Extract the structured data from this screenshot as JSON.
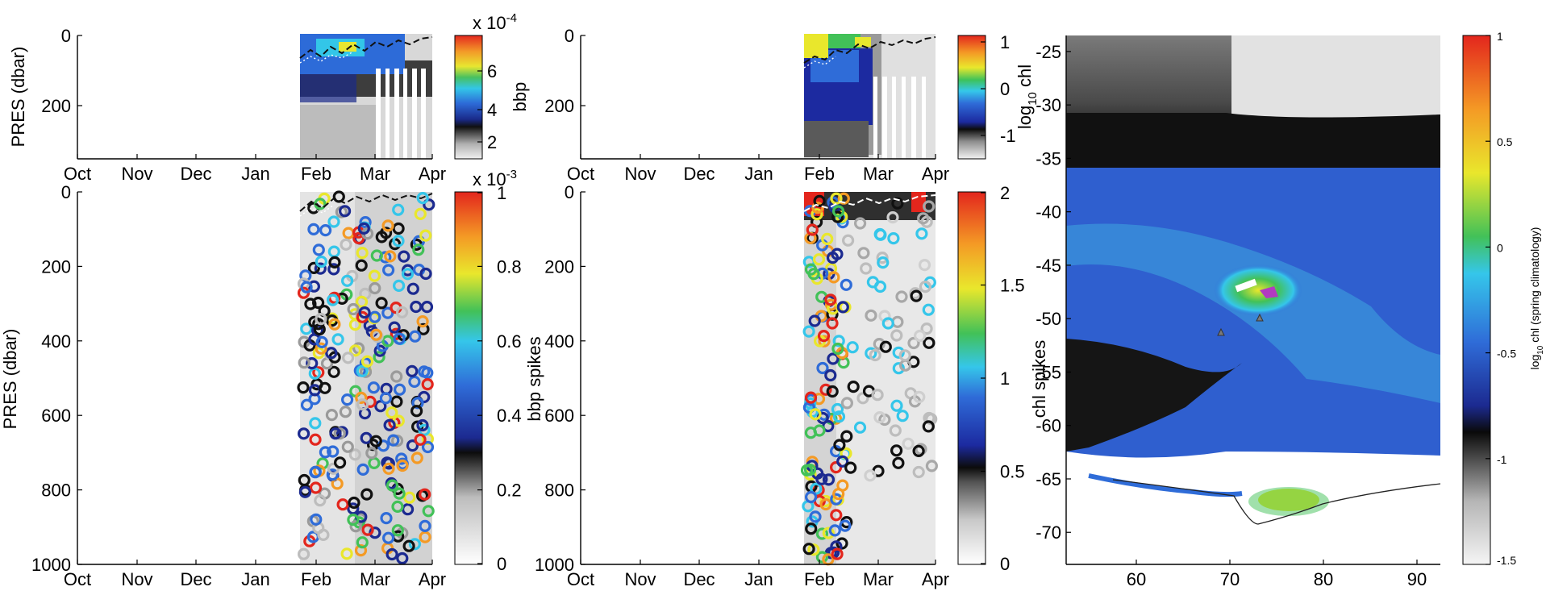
{
  "chart_data": [
    {
      "panel": "top-left",
      "type": "heatmap",
      "ylabel": "PRES (dbar)",
      "xlabel": "",
      "x_ticks": [
        "Oct",
        "Nov",
        "Dec",
        "Jan",
        "Feb",
        "Mar",
        "Apr"
      ],
      "y_ticks": [
        0,
        200
      ],
      "ylim": [
        350,
        0
      ],
      "colorbar": {
        "label": "bbp",
        "multiplier": "x 10",
        "exponent": "-4",
        "ticks": [
          2,
          4,
          6
        ],
        "range": [
          1.2,
          8.5
        ],
        "colormap": "gray-black-blue-cyan-green-yellow-red"
      },
      "data_extent": [
        "Feb",
        "Apr"
      ]
    },
    {
      "panel": "top-middle",
      "type": "heatmap",
      "ylabel": "",
      "x_ticks": [
        "Oct",
        "Nov",
        "Dec",
        "Jan",
        "Feb",
        "Mar",
        "Apr"
      ],
      "y_ticks": [
        0,
        200
      ],
      "ylim": [
        350,
        0
      ],
      "colorbar": {
        "label": "",
        "ticks": [
          -1,
          0,
          1
        ],
        "range": [
          -1.4,
          1.1
        ],
        "colormap": "gray-black-blue-cyan-green-yellow-red"
      },
      "data_extent": [
        "Feb",
        "Apr"
      ]
    },
    {
      "panel": "bottom-left",
      "type": "scatter",
      "ylabel": "PRES (dbar)",
      "x_ticks": [
        "Oct",
        "Nov",
        "Dec",
        "Jan",
        "Feb",
        "Mar",
        "Apr"
      ],
      "y_ticks": [
        0,
        200,
        400,
        600,
        800,
        1000
      ],
      "ylim": [
        1000,
        0
      ],
      "colorbar": {
        "label": "",
        "multiplier": "x 10",
        "exponent": "-3",
        "ticks": [
          0,
          0.2,
          0.4,
          0.6,
          0.8,
          1
        ],
        "range": [
          0,
          1
        ],
        "colormap": "white-gray-black-blue-cyan-green-yellow-red"
      },
      "data_extent": [
        "Feb",
        "Apr"
      ]
    },
    {
      "panel": "bottom-middle",
      "type": "scatter",
      "ylabel": "bbp spikes",
      "x_ticks": [
        "Oct",
        "Nov",
        "Dec",
        "Jan",
        "Feb",
        "Mar",
        "Apr"
      ],
      "y_ticks": [
        0,
        200,
        400,
        600,
        800,
        1000
      ],
      "ylim": [
        1000,
        0
      ],
      "colorbar": {
        "label": "",
        "ticks": [
          0,
          0.5,
          1,
          1.5,
          2
        ],
        "range": [
          0,
          2
        ],
        "colormap": "white-gray-black-blue-cyan-green-yellow-red"
      },
      "data_extent": [
        "Feb",
        "Apr"
      ]
    },
    {
      "panel": "right-map",
      "type": "heatmap",
      "ylabel_top": "log",
      "ylabel_top_sub": "10",
      "ylabel_top_rest": " chl",
      "ylabel_bottom": "chl spikes",
      "x_ticks": [
        60,
        70,
        80,
        90
      ],
      "xlim": [
        52.5,
        92.5
      ],
      "y_ticks": [
        -25,
        -30,
        -35,
        -40,
        -45,
        -50,
        -55,
        -60,
        -65,
        -70
      ],
      "ylim": [
        -73,
        -23.5
      ],
      "colorbar": {
        "label": "log",
        "label_sub": "10",
        "label_rest": " chl (spring climatology)",
        "ticks": [
          1,
          0.5,
          0,
          -0.5,
          -1,
          -1.5
        ],
        "range": [
          -1.5,
          1
        ],
        "colormap": "white-gray-black-blue-cyan-green-yellow-red"
      }
    }
  ]
}
